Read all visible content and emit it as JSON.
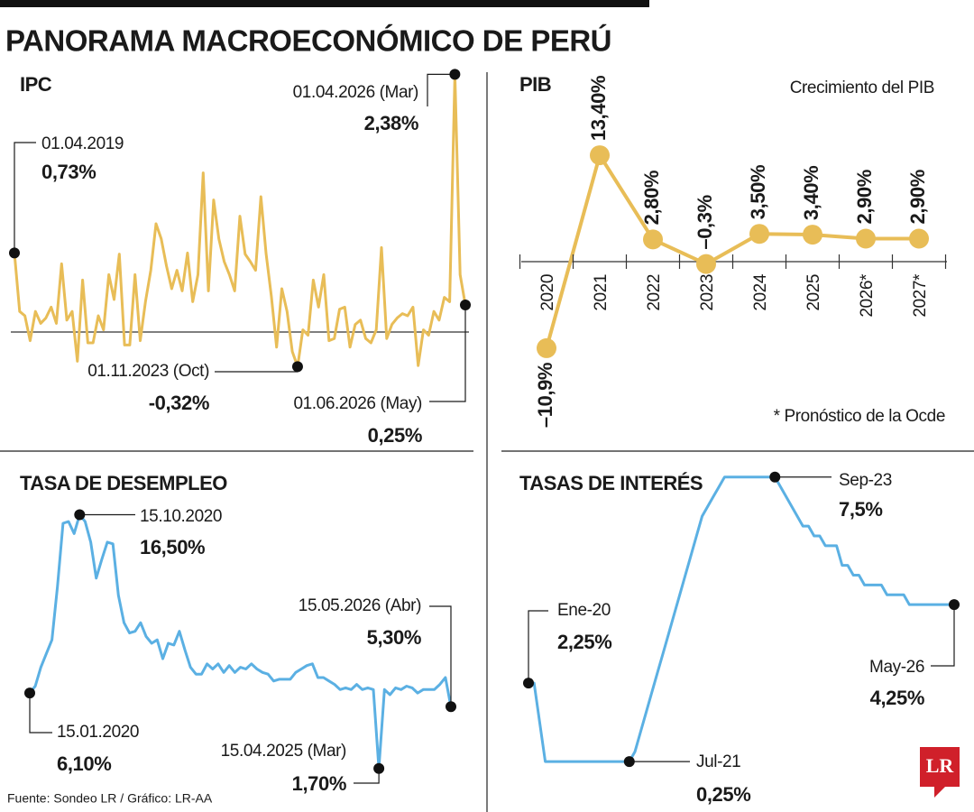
{
  "title": "PANORAMA MACROECONÓMICO DE PERÚ",
  "source": "Fuente: Sondeo LR / Gráfico: LR-AA",
  "logo": "LR",
  "chart_data": [
    {
      "type": "line",
      "title": "IPC",
      "color": "#e8bd57",
      "markers": "labeled",
      "ylim": [
        -0.5,
        2.5
      ],
      "categories": [
        "01.04.2019",
        null,
        null,
        null,
        null,
        null,
        null,
        null,
        null,
        null,
        null,
        null,
        null,
        null,
        null,
        null,
        null,
        null,
        null,
        null,
        null,
        null,
        null,
        null,
        null,
        null,
        null,
        null,
        null,
        null,
        null,
        null,
        null,
        null,
        null,
        null,
        null,
        null,
        null,
        null,
        null,
        null,
        null,
        null,
        null,
        null,
        null,
        null,
        null,
        null,
        null,
        null,
        null,
        null,
        "01.11.2023 (Oct)",
        null,
        null,
        null,
        null,
        null,
        null,
        null,
        null,
        null,
        null,
        null,
        null,
        null,
        null,
        null,
        null,
        null,
        null,
        null,
        null,
        null,
        null,
        null,
        null,
        null,
        null,
        null,
        null,
        null,
        "01.04.2026 (Mar)",
        null,
        "01.06.2026 (May)"
      ],
      "values": [
        0.73,
        0.19,
        0.15,
        -0.08,
        0.19,
        0.08,
        0.13,
        0.23,
        0.08,
        0.63,
        0.11,
        0.19,
        -0.27,
        0.48,
        -0.1,
        -0.1,
        0.15,
        0.02,
        0.53,
        0.3,
        0.72,
        -0.12,
        -0.12,
        0.53,
        -0.08,
        0.28,
        0.57,
        1.0,
        0.86,
        0.61,
        0.4,
        0.57,
        0.38,
        0.73,
        0.28,
        0.53,
        1.47,
        0.38,
        1.22,
        0.86,
        0.65,
        0.53,
        0.38,
        1.07,
        0.72,
        0.65,
        0.57,
        1.25,
        0.72,
        0.33,
        -0.14,
        0.4,
        0.19,
        -0.18,
        -0.32,
        0.02,
        -0.03,
        0.48,
        0.23,
        0.53,
        -0.08,
        -0.06,
        0.21,
        0.23,
        -0.14,
        0.07,
        0.11,
        -0.06,
        -0.1,
        0.02,
        0.78,
        -0.06,
        0.07,
        0.13,
        0.17,
        0.15,
        0.23,
        -0.31,
        0.02,
        -0.03,
        0.19,
        0.11,
        0.32,
        0.28,
        2.38,
        0.53,
        0.25
      ],
      "value_labels": [
        "0,73%",
        null,
        null,
        null,
        null,
        null,
        null,
        null,
        null,
        null,
        null,
        null,
        null,
        null,
        null,
        null,
        null,
        null,
        null,
        null,
        null,
        null,
        null,
        null,
        null,
        null,
        null,
        null,
        null,
        null,
        null,
        null,
        null,
        null,
        null,
        null,
        null,
        null,
        null,
        null,
        null,
        null,
        null,
        null,
        null,
        null,
        null,
        null,
        null,
        null,
        null,
        null,
        null,
        null,
        "-0,32%",
        null,
        null,
        null,
        null,
        null,
        null,
        null,
        null,
        null,
        null,
        null,
        null,
        null,
        null,
        null,
        null,
        null,
        null,
        null,
        null,
        null,
        null,
        null,
        null,
        null,
        null,
        null,
        null,
        null,
        "2,38%",
        null,
        "0,25%"
      ]
    },
    {
      "type": "line",
      "title": "PIB",
      "subtitle": "Crecimiento del PIB",
      "note": "* Pronóstico de la Ocde",
      "color": "#e8bd57",
      "markers": "all",
      "ylim": [
        -15,
        20
      ],
      "categories": [
        "2020",
        "2021",
        "2022",
        "2023",
        "2024",
        "2025",
        "2026*",
        "2027*"
      ],
      "values": [
        -10.9,
        13.4,
        2.8,
        -0.3,
        3.5,
        3.4,
        2.9,
        2.9
      ],
      "value_labels": [
        "–10,9%",
        "13,40%",
        "2,80%",
        "–0,3%",
        "3,50%",
        "3,40%",
        "2,90%",
        "2,90%"
      ]
    },
    {
      "type": "line",
      "title": "TASA DE DESEMPLEO",
      "color": "#5bb0e3",
      "markers": "labeled",
      "ylim": [
        0,
        18
      ],
      "categories": [
        "15.01.2020",
        null,
        null,
        null,
        null,
        null,
        null,
        null,
        null,
        "15.10.2020",
        null,
        null,
        null,
        null,
        null,
        null,
        null,
        null,
        null,
        null,
        null,
        null,
        null,
        null,
        null,
        null,
        null,
        null,
        null,
        null,
        null,
        null,
        null,
        null,
        null,
        null,
        null,
        null,
        null,
        null,
        null,
        null,
        null,
        null,
        null,
        null,
        null,
        null,
        null,
        null,
        null,
        null,
        null,
        null,
        null,
        null,
        null,
        null,
        null,
        null,
        null,
        null,
        null,
        "15.04.2025 (Mar)",
        null,
        null,
        null,
        null,
        null,
        null,
        null,
        null,
        null,
        null,
        null,
        null,
        "15.05.2026 (Abr)"
      ],
      "values": [
        6.1,
        6.5,
        7.6,
        8.4,
        9.2,
        12.3,
        16.0,
        16.1,
        15.4,
        16.5,
        16.1,
        14.9,
        12.8,
        13.9,
        14.9,
        14.8,
        11.8,
        10.2,
        9.6,
        9.7,
        10.2,
        9.4,
        9.0,
        9.2,
        8.1,
        9.0,
        8.9,
        9.7,
        8.6,
        7.6,
        7.2,
        7.2,
        7.8,
        7.5,
        7.8,
        7.3,
        7.7,
        7.3,
        7.6,
        7.5,
        7.8,
        7.5,
        7.3,
        7.2,
        6.8,
        6.9,
        6.9,
        6.9,
        7.3,
        7.5,
        7.7,
        7.8,
        7.0,
        7.0,
        6.8,
        6.6,
        6.3,
        6.4,
        6.3,
        6.6,
        6.3,
        6.4,
        6.3,
        1.7,
        6.3,
        6.0,
        6.4,
        6.3,
        6.5,
        6.4,
        6.1,
        6.3,
        6.3,
        6.3,
        6.6,
        7.0,
        5.3
      ],
      "value_labels": [
        "6,10%",
        null,
        null,
        null,
        null,
        null,
        null,
        null,
        null,
        "16,50%",
        null,
        null,
        null,
        null,
        null,
        null,
        null,
        null,
        null,
        null,
        null,
        null,
        null,
        null,
        null,
        null,
        null,
        null,
        null,
        null,
        null,
        null,
        null,
        null,
        null,
        null,
        null,
        null,
        null,
        null,
        null,
        null,
        null,
        null,
        null,
        null,
        null,
        null,
        null,
        null,
        null,
        null,
        null,
        null,
        null,
        null,
        null,
        null,
        null,
        null,
        null,
        null,
        null,
        "1,70%",
        null,
        null,
        null,
        null,
        null,
        null,
        null,
        null,
        null,
        null,
        null,
        null,
        "5,30%"
      ]
    },
    {
      "type": "line",
      "title": "TASAS DE INTERÉS",
      "color": "#5bb0e3",
      "markers": "labeled",
      "ylim": [
        0,
        8
      ],
      "categories": [
        "Ene-20",
        null,
        null,
        null,
        null,
        null,
        null,
        null,
        null,
        null,
        null,
        null,
        null,
        null,
        null,
        null,
        null,
        null,
        "Jul-21",
        null,
        null,
        null,
        null,
        null,
        null,
        null,
        null,
        null,
        null,
        null,
        null,
        null,
        null,
        null,
        null,
        null,
        null,
        null,
        null,
        null,
        null,
        null,
        null,
        null,
        "Sep-23",
        null,
        null,
        null,
        null,
        null,
        null,
        null,
        null,
        null,
        null,
        null,
        null,
        null,
        null,
        null,
        null,
        null,
        null,
        null,
        null,
        null,
        null,
        null,
        null,
        null,
        null,
        null,
        null,
        null,
        null,
        null,
        "May-26"
      ],
      "values": [
        2.25,
        2.25,
        1.25,
        0.25,
        0.25,
        0.25,
        0.25,
        0.25,
        0.25,
        0.25,
        0.25,
        0.25,
        0.25,
        0.25,
        0.25,
        0.25,
        0.25,
        0.25,
        0.25,
        0.5,
        1.0,
        1.5,
        2.0,
        2.5,
        3.0,
        3.5,
        4.0,
        4.5,
        5.0,
        5.5,
        6.0,
        6.5,
        6.75,
        7.0,
        7.25,
        7.5,
        7.5,
        7.5,
        7.5,
        7.5,
        7.5,
        7.5,
        7.5,
        7.5,
        7.5,
        7.25,
        7.0,
        6.75,
        6.5,
        6.25,
        6.25,
        6.0,
        6.0,
        5.75,
        5.75,
        5.75,
        5.25,
        5.25,
        5.0,
        5.0,
        4.75,
        4.75,
        4.75,
        4.75,
        4.5,
        4.5,
        4.5,
        4.5,
        4.25,
        4.25,
        4.25,
        4.25,
        4.25,
        4.25,
        4.25,
        4.25,
        4.25
      ],
      "value_labels": [
        "2,25%",
        null,
        null,
        null,
        null,
        null,
        null,
        null,
        null,
        null,
        null,
        null,
        null,
        null,
        null,
        null,
        null,
        null,
        "0,25%",
        null,
        null,
        null,
        null,
        null,
        null,
        null,
        null,
        null,
        null,
        null,
        null,
        null,
        null,
        null,
        null,
        null,
        null,
        null,
        null,
        null,
        null,
        null,
        null,
        null,
        "7,5%",
        null,
        null,
        null,
        null,
        null,
        null,
        null,
        null,
        null,
        null,
        null,
        null,
        null,
        null,
        null,
        null,
        null,
        null,
        null,
        null,
        null,
        null,
        null,
        null,
        null,
        null,
        null,
        null,
        null,
        null,
        null,
        "4,25%"
      ]
    }
  ]
}
